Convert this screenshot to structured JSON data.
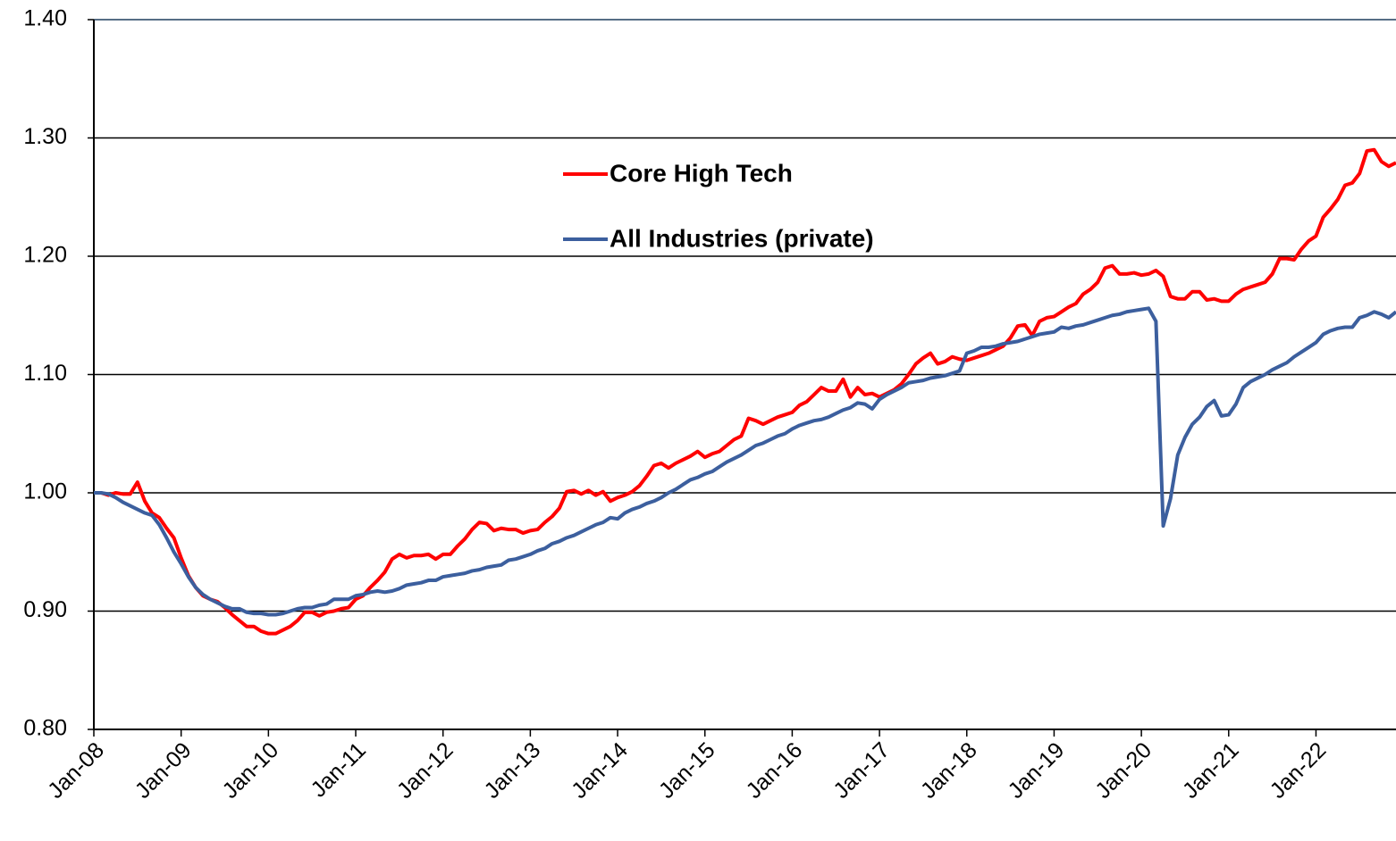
{
  "chart_data": {
    "type": "line",
    "categories": [
      "Jan-08",
      null,
      null,
      null,
      null,
      null,
      null,
      null,
      null,
      null,
      null,
      null,
      "Jan-09",
      null,
      null,
      null,
      null,
      null,
      null,
      null,
      null,
      null,
      null,
      null,
      "Jan-10",
      null,
      null,
      null,
      null,
      null,
      null,
      null,
      null,
      null,
      null,
      null,
      "Jan-11",
      null,
      null,
      null,
      null,
      null,
      null,
      null,
      null,
      null,
      null,
      null,
      "Jan-12",
      null,
      null,
      null,
      null,
      null,
      null,
      null,
      null,
      null,
      null,
      null,
      "Jan-13",
      null,
      null,
      null,
      null,
      null,
      null,
      null,
      null,
      null,
      null,
      null,
      "Jan-14",
      null,
      null,
      null,
      null,
      null,
      null,
      null,
      null,
      null,
      null,
      null,
      "Jan-15",
      null,
      null,
      null,
      null,
      null,
      null,
      null,
      null,
      null,
      null,
      null,
      "Jan-16",
      null,
      null,
      null,
      null,
      null,
      null,
      null,
      null,
      null,
      null,
      null,
      "Jan-17",
      null,
      null,
      null,
      null,
      null,
      null,
      null,
      null,
      null,
      null,
      null,
      "Jan-18",
      null,
      null,
      null,
      null,
      null,
      null,
      null,
      null,
      null,
      null,
      null,
      "Jan-19",
      null,
      null,
      null,
      null,
      null,
      null,
      null,
      null,
      null,
      null,
      null,
      "Jan-20",
      null,
      null,
      null,
      null,
      null,
      null,
      null,
      null,
      null,
      null,
      null,
      "Jan-21",
      null,
      null,
      null,
      null,
      null,
      null,
      null,
      null,
      null,
      null,
      null,
      "Jan-22",
      null,
      null,
      null,
      null,
      null,
      null,
      null,
      null,
      null,
      null,
      null
    ],
    "series": [
      {
        "name": "Core High Tech",
        "color": "#ff0000",
        "values": [
          1.0,
          1.0,
          0.998,
          1.0,
          0.999,
          0.999,
          1.009,
          0.993,
          0.983,
          0.979,
          0.97,
          0.962,
          0.945,
          0.93,
          0.92,
          0.913,
          0.91,
          0.908,
          0.903,
          0.897,
          0.892,
          0.887,
          0.887,
          0.883,
          0.881,
          0.881,
          0.884,
          0.887,
          0.892,
          0.899,
          0.899,
          0.896,
          0.899,
          0.9,
          0.902,
          0.903,
          0.91,
          0.913,
          0.92,
          0.926,
          0.933,
          0.944,
          0.948,
          0.945,
          0.947,
          0.947,
          0.948,
          0.944,
          0.948,
          0.948,
          0.955,
          0.961,
          0.969,
          0.975,
          0.974,
          0.968,
          0.97,
          0.969,
          0.969,
          0.966,
          0.968,
          0.969,
          0.975,
          0.98,
          0.987,
          1.001,
          1.002,
          0.999,
          1.002,
          0.998,
          1.001,
          0.993,
          0.996,
          0.998,
          1.001,
          1.006,
          1.014,
          1.023,
          1.025,
          1.021,
          1.025,
          1.028,
          1.031,
          1.035,
          1.03,
          1.033,
          1.035,
          1.04,
          1.045,
          1.048,
          1.063,
          1.061,
          1.058,
          1.061,
          1.064,
          1.066,
          1.068,
          1.074,
          1.077,
          1.083,
          1.089,
          1.086,
          1.086,
          1.096,
          1.081,
          1.089,
          1.083,
          1.084,
          1.081,
          1.084,
          1.087,
          1.092,
          1.1,
          1.109,
          1.114,
          1.118,
          1.109,
          1.111,
          1.115,
          1.113,
          1.112,
          1.114,
          1.116,
          1.118,
          1.121,
          1.124,
          1.131,
          1.141,
          1.142,
          1.133,
          1.145,
          1.148,
          1.149,
          1.153,
          1.157,
          1.16,
          1.168,
          1.172,
          1.178,
          1.19,
          1.192,
          1.185,
          1.185,
          1.186,
          1.184,
          1.185,
          1.188,
          1.183,
          1.166,
          1.164,
          1.164,
          1.17,
          1.17,
          1.163,
          1.164,
          1.162,
          1.162,
          1.168,
          1.172,
          1.174,
          1.176,
          1.178,
          1.185,
          1.198,
          1.198,
          1.197,
          1.206,
          1.213,
          1.217,
          1.233,
          1.24,
          1.248,
          1.26,
          1.262,
          1.27,
          1.289,
          1.29,
          1.28,
          1.276,
          1.279
        ]
      },
      {
        "name": "All Industries (private)",
        "color": "#3c5f9e",
        "values": [
          1.0,
          1.0,
          0.999,
          0.996,
          0.992,
          0.989,
          0.986,
          0.983,
          0.981,
          0.973,
          0.962,
          0.95,
          0.94,
          0.929,
          0.92,
          0.914,
          0.91,
          0.907,
          0.904,
          0.902,
          0.902,
          0.899,
          0.898,
          0.898,
          0.897,
          0.897,
          0.898,
          0.9,
          0.902,
          0.903,
          0.903,
          0.905,
          0.906,
          0.91,
          0.91,
          0.91,
          0.913,
          0.914,
          0.916,
          0.917,
          0.916,
          0.917,
          0.919,
          0.922,
          0.923,
          0.924,
          0.926,
          0.926,
          0.929,
          0.93,
          0.931,
          0.932,
          0.934,
          0.935,
          0.937,
          0.938,
          0.939,
          0.943,
          0.944,
          0.946,
          0.948,
          0.951,
          0.953,
          0.957,
          0.959,
          0.962,
          0.964,
          0.967,
          0.97,
          0.973,
          0.975,
          0.979,
          0.978,
          0.983,
          0.986,
          0.988,
          0.991,
          0.993,
          0.996,
          1.0,
          1.003,
          1.007,
          1.011,
          1.013,
          1.016,
          1.018,
          1.022,
          1.026,
          1.029,
          1.032,
          1.036,
          1.04,
          1.042,
          1.045,
          1.048,
          1.05,
          1.054,
          1.057,
          1.059,
          1.061,
          1.062,
          1.064,
          1.067,
          1.07,
          1.072,
          1.076,
          1.075,
          1.071,
          1.079,
          1.083,
          1.086,
          1.089,
          1.093,
          1.094,
          1.095,
          1.097,
          1.098,
          1.099,
          1.101,
          1.103,
          1.118,
          1.12,
          1.123,
          1.123,
          1.124,
          1.126,
          1.127,
          1.128,
          1.13,
          1.132,
          1.134,
          1.135,
          1.136,
          1.14,
          1.139,
          1.141,
          1.142,
          1.144,
          1.146,
          1.148,
          1.15,
          1.151,
          1.153,
          1.154,
          1.155,
          1.156,
          1.145,
          0.972,
          0.995,
          1.032,
          1.047,
          1.058,
          1.064,
          1.073,
          1.078,
          1.065,
          1.066,
          1.075,
          1.089,
          1.094,
          1.097,
          1.1,
          1.104,
          1.107,
          1.11,
          1.115,
          1.119,
          1.123,
          1.127,
          1.134,
          1.137,
          1.139,
          1.14,
          1.14,
          1.148,
          1.15,
          1.153,
          1.151,
          1.148,
          1.153
        ]
      }
    ],
    "ylim": [
      0.8,
      1.4
    ],
    "yticks": [
      {
        "value": 0.8,
        "label": "0.80"
      },
      {
        "value": 0.9,
        "label": "0.90"
      },
      {
        "value": 1.0,
        "label": "1.00"
      },
      {
        "value": 1.1,
        "label": "1.10"
      },
      {
        "value": 1.2,
        "label": "1.20"
      },
      {
        "value": 1.3,
        "label": "1.30"
      },
      {
        "value": 1.4,
        "label": "1.40"
      }
    ],
    "grid": true,
    "legend": "upper center"
  }
}
